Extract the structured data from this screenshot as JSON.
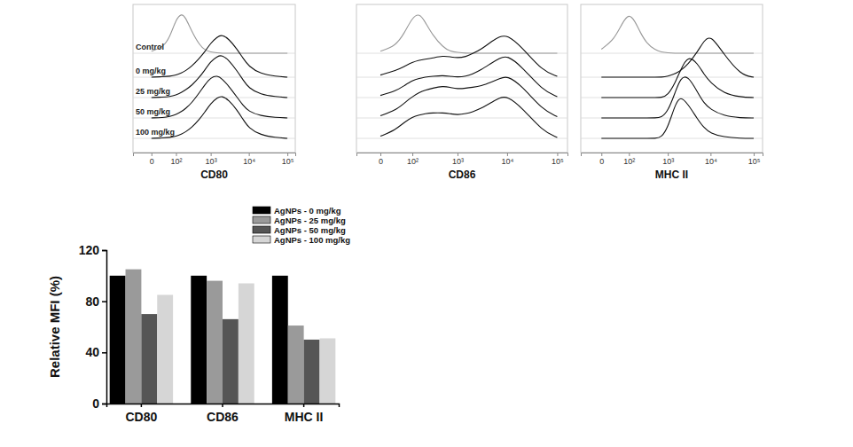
{
  "chart_data": [
    {
      "type": "line",
      "xlabel": "CD80",
      "log": "x",
      "grid": false,
      "tick_labels": "x",
      "xlim": [
        -60,
        160000
      ],
      "xticks": [
        0,
        {
          "value": 100,
          "label": "10²"
        },
        {
          "value": 1000,
          "label": "10³"
        },
        {
          "value": 10000,
          "label": "10⁴"
        },
        {
          "value": 100000,
          "label": "10⁵"
        }
      ],
      "ylim": [
        0,
        100
      ],
      "x": [
        0,
        30,
        60,
        100,
        150,
        200,
        300,
        500,
        700,
        1000,
        1500,
        2000,
        3000,
        5000,
        7000,
        10000,
        20000,
        50000,
        100000
      ],
      "series": [
        {
          "name": "Control",
          "color": "#999999",
          "values": [
            5,
            15,
            40,
            85,
            100,
            90,
            55,
            20,
            8,
            3,
            1,
            0,
            0,
            0,
            0,
            0,
            0,
            0,
            0
          ]
        },
        {
          "name": "0 mg/kg",
          "color": "#111111",
          "values": [
            0,
            1,
            2,
            5,
            10,
            15,
            25,
            45,
            60,
            80,
            95,
            100,
            90,
            65,
            45,
            25,
            8,
            2,
            0
          ]
        },
        {
          "name": "25 mg/kg",
          "color": "#111111",
          "values": [
            0,
            1,
            2,
            6,
            12,
            18,
            28,
            48,
            65,
            85,
            97,
            100,
            88,
            62,
            42,
            22,
            7,
            2,
            0
          ]
        },
        {
          "name": "50 mg/kg",
          "color": "#111111",
          "values": [
            0,
            1,
            3,
            8,
            15,
            22,
            35,
            60,
            78,
            95,
            100,
            92,
            75,
            48,
            30,
            15,
            5,
            1,
            0
          ]
        },
        {
          "name": "100 mg/kg",
          "color": "#111111",
          "values": [
            0,
            1,
            2,
            5,
            10,
            15,
            25,
            45,
            62,
            82,
            96,
            100,
            90,
            66,
            45,
            24,
            8,
            2,
            0
          ]
        }
      ]
    },
    {
      "type": "line",
      "xlabel": "CD86",
      "log": "x",
      "grid": false,
      "tick_labels": "x",
      "xlim": [
        -60,
        160000
      ],
      "xticks": [
        0,
        {
          "value": 100,
          "label": "10²"
        },
        {
          "value": 1000,
          "label": "10³"
        },
        {
          "value": 10000,
          "label": "10⁴"
        },
        {
          "value": 100000,
          "label": "10⁵"
        }
      ],
      "ylim": [
        0,
        100
      ],
      "x": [
        0,
        30,
        60,
        100,
        150,
        200,
        300,
        500,
        700,
        1000,
        1500,
        2000,
        3000,
        5000,
        7000,
        10000,
        20000,
        50000,
        100000
      ],
      "series": [
        {
          "color": "#999999",
          "values": [
            5,
            18,
            50,
            90,
            100,
            80,
            45,
            15,
            5,
            2,
            0,
            0,
            0,
            0,
            0,
            0,
            0,
            0,
            0
          ]
        },
        {
          "color": "#111111",
          "values": [
            5,
            15,
            25,
            35,
            40,
            42,
            45,
            50,
            48,
            45,
            48,
            55,
            65,
            85,
            95,
            100,
            70,
            15,
            2
          ]
        },
        {
          "color": "#111111",
          "values": [
            5,
            15,
            28,
            40,
            45,
            48,
            50,
            52,
            50,
            48,
            50,
            55,
            65,
            82,
            92,
            100,
            72,
            18,
            2
          ]
        },
        {
          "color": "#111111",
          "values": [
            5,
            18,
            35,
            50,
            60,
            65,
            70,
            75,
            72,
            68,
            70,
            72,
            75,
            85,
            92,
            100,
            75,
            20,
            3
          ]
        },
        {
          "color": "#111111",
          "values": [
            5,
            20,
            38,
            50,
            55,
            58,
            60,
            60,
            58,
            55,
            58,
            62,
            70,
            85,
            95,
            100,
            72,
            18,
            2
          ]
        }
      ]
    },
    {
      "type": "line",
      "xlabel": "MHC II",
      "log": "x",
      "grid": false,
      "tick_labels": "x",
      "xlim": [
        -60,
        160000
      ],
      "xticks": [
        0,
        {
          "value": 100,
          "label": "10²"
        },
        {
          "value": 1000,
          "label": "10³"
        },
        {
          "value": 10000,
          "label": "10⁴"
        },
        {
          "value": 100000,
          "label": "10⁵"
        }
      ],
      "ylim": [
        0,
        100
      ],
      "x": [
        0,
        30,
        60,
        100,
        150,
        200,
        300,
        500,
        700,
        1000,
        1500,
        2000,
        3000,
        5000,
        7000,
        10000,
        20000,
        50000,
        100000
      ],
      "series": [
        {
          "color": "#999999",
          "values": [
            10,
            35,
            75,
            100,
            80,
            55,
            25,
            8,
            3,
            1,
            0,
            0,
            0,
            0,
            0,
            0,
            0,
            0,
            0
          ]
        },
        {
          "color": "#111111",
          "values": [
            0,
            0,
            0,
            0,
            0,
            0,
            0,
            0,
            0,
            2,
            8,
            15,
            30,
            60,
            85,
            100,
            55,
            5,
            0
          ]
        },
        {
          "color": "#111111",
          "values": [
            0,
            0,
            0,
            0,
            0,
            0,
            0,
            0,
            0,
            5,
            35,
            65,
            100,
            80,
            55,
            35,
            10,
            1,
            0
          ]
        },
        {
          "color": "#111111",
          "values": [
            0,
            0,
            0,
            0,
            0,
            0,
            0,
            0,
            1,
            15,
            60,
            95,
            100,
            60,
            35,
            20,
            5,
            0,
            0
          ]
        },
        {
          "color": "#111111",
          "values": [
            0,
            0,
            0,
            0,
            0,
            0,
            0,
            0,
            2,
            25,
            80,
            100,
            80,
            45,
            25,
            12,
            3,
            0,
            0
          ]
        }
      ]
    },
    {
      "type": "bar",
      "ylabel": "Relative MFI (%)",
      "grid": false,
      "legend": "top",
      "categories": [
        "CD80",
        "CD86",
        "MHC II"
      ],
      "ylim": [
        0,
        120
      ],
      "yticks": [
        0,
        40,
        80,
        120
      ],
      "series": [
        {
          "name": "AgNPs - 0 mg/kg",
          "color": "#000000",
          "values": [
            100,
            100,
            100
          ]
        },
        {
          "name": "AgNPs - 25 mg/kg",
          "color": "#9a9a9a",
          "values": [
            105,
            96,
            61
          ]
        },
        {
          "name": "AgNPs - 50 mg/kg",
          "color": "#555555",
          "values": [
            70,
            66,
            50
          ]
        },
        {
          "name": "AgNPs - 100 mg/kg",
          "color": "#d6d6d6",
          "values": [
            85,
            94,
            51
          ]
        }
      ]
    }
  ]
}
